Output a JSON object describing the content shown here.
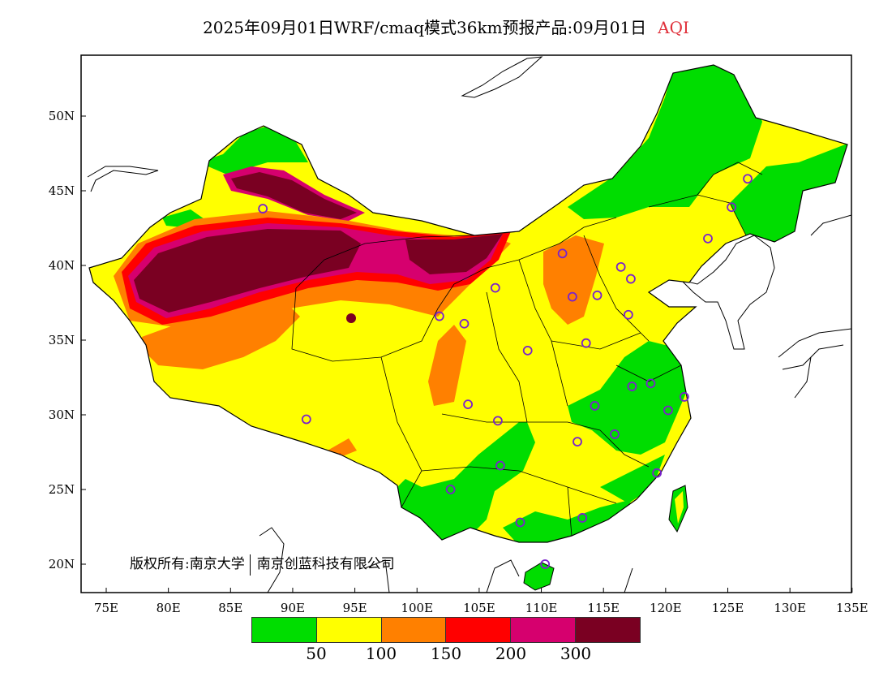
{
  "title": {
    "main": "2025年09月01日WRF/cmaq模式36km预报产品:09月01日",
    "variable": "AQI",
    "variable_color": "#e0303a"
  },
  "axes": {
    "lon_ticks": [
      "75E",
      "80E",
      "85E",
      "90E",
      "95E",
      "100E",
      "105E",
      "110E",
      "115E",
      "120E",
      "125E",
      "130E",
      "135E"
    ],
    "lat_ticks": [
      "50N",
      "45N",
      "40N",
      "35N",
      "30N",
      "25N",
      "20N"
    ]
  },
  "copyright": {
    "prefix": "版权所有:南京大学",
    "company": "南京创蓝科技有限公司"
  },
  "legend": {
    "colors": [
      "#00dd00",
      "#ffff00",
      "#ff8000",
      "#ff0000",
      "#d6006e",
      "#7a0022"
    ],
    "labels": [
      "50",
      "100",
      "150",
      "200",
      "300"
    ]
  },
  "stations": {
    "marker_color": "#7a22cc",
    "points": [
      [
        87.6,
        43.8
      ],
      [
        91.1,
        29.7
      ],
      [
        101.8,
        36.6
      ],
      [
        103.8,
        36.1
      ],
      [
        106.3,
        38.5
      ],
      [
        111.7,
        40.8
      ],
      [
        112.5,
        37.9
      ],
      [
        114.5,
        38.0
      ],
      [
        116.4,
        39.9
      ],
      [
        117.2,
        39.1
      ],
      [
        117.0,
        36.7
      ],
      [
        113.6,
        34.8
      ],
      [
        108.9,
        34.3
      ],
      [
        104.1,
        30.7
      ],
      [
        106.5,
        29.6
      ],
      [
        106.7,
        26.6
      ],
      [
        102.7,
        25.0
      ],
      [
        108.3,
        22.8
      ],
      [
        113.3,
        23.1
      ],
      [
        110.3,
        20.0
      ],
      [
        112.9,
        28.2
      ],
      [
        114.3,
        30.6
      ],
      [
        115.9,
        28.7
      ],
      [
        117.3,
        31.9
      ],
      [
        118.8,
        32.1
      ],
      [
        120.2,
        30.3
      ],
      [
        121.5,
        31.2
      ],
      [
        119.3,
        26.1
      ],
      [
        123.4,
        41.8
      ],
      [
        125.3,
        43.9
      ],
      [
        126.6,
        45.8
      ]
    ]
  }
}
